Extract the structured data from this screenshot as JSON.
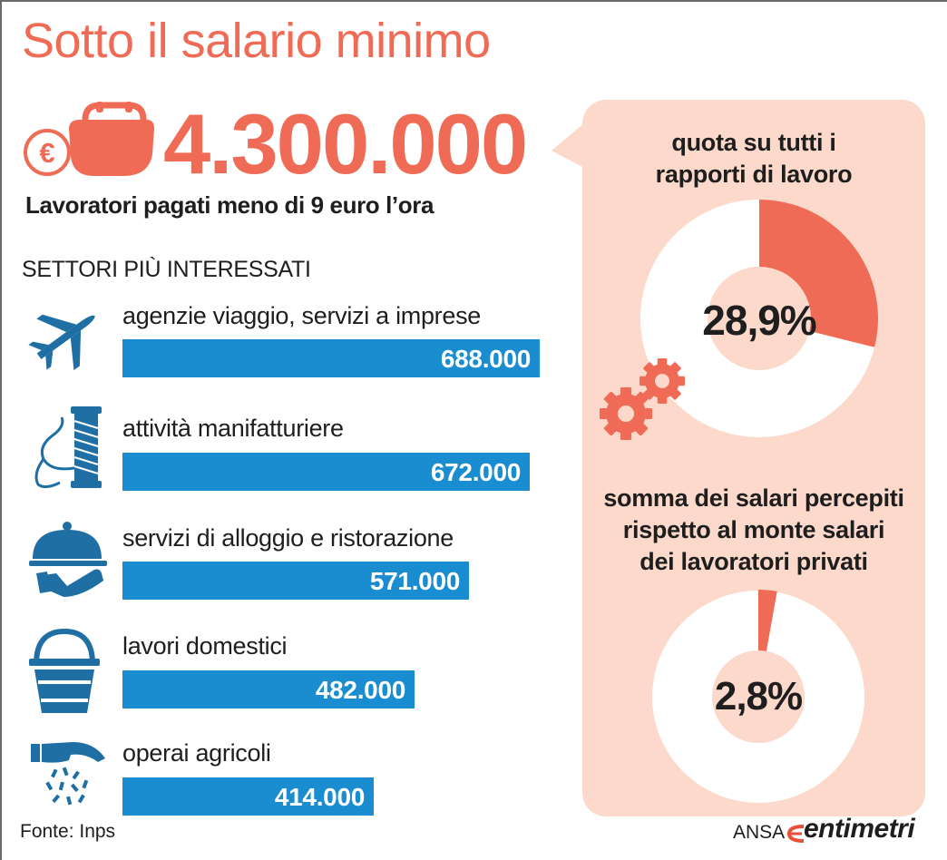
{
  "header": {
    "title": "Sotto il salario minimo",
    "big_number": "4.300.000",
    "subtitle": "Lavoratori pagati meno di 9 euro l’ora",
    "sectors_heading": "SETTORI PIÙ INTERESSATI"
  },
  "colors": {
    "accent": "#ef6b55",
    "bar": "#1a8dd1",
    "icon": "#1f6fa5",
    "panel": "#fcd9ca"
  },
  "chart_data": [
    {
      "type": "bar",
      "orientation": "horizontal",
      "title": "SETTORI PIÙ INTERESSATI",
      "categories": [
        "agenzie viaggio, servizi a imprese",
        "attività manifatturiere",
        "servizi di alloggio e ristorazione",
        "lavori domestici",
        "operai agricoli"
      ],
      "values": [
        688000,
        672000,
        571000,
        482000,
        414000
      ],
      "value_labels": [
        "688.000",
        "672.000",
        "571.000",
        "482.000",
        "414.000"
      ],
      "icons": [
        "airplane-icon",
        "thread-spool-icon",
        "serving-cloche-icon",
        "bucket-icon",
        "seeding-hand-icon"
      ]
    },
    {
      "type": "pie",
      "donut": true,
      "title": "quota su tutti i rapporti di lavoro",
      "value": 28.9,
      "label": "28,9%",
      "start": "top",
      "direction": "clockwise"
    },
    {
      "type": "pie",
      "donut": true,
      "title": "somma dei salari percepiti rispetto al monte salari dei lavoratori privati",
      "value": 2.8,
      "label": "2,8%",
      "start": "top",
      "direction": "clockwise"
    }
  ],
  "panel": {
    "donut1_caption_line1": "quota su tutti i",
    "donut1_caption_line2": "rapporti di lavoro",
    "donut2_caption_line1": "somma dei salari percepiti",
    "donut2_caption_line2": "rispetto al monte salari",
    "donut2_caption_line3": "dei lavoratori privati"
  },
  "footer": {
    "source": "Fonte: Inps",
    "agency": "ANSA",
    "brand": "entimetri"
  },
  "icons": {
    "purse": "purse-icon",
    "euro": "euro-coin-icon",
    "gears": "gears-icon"
  }
}
